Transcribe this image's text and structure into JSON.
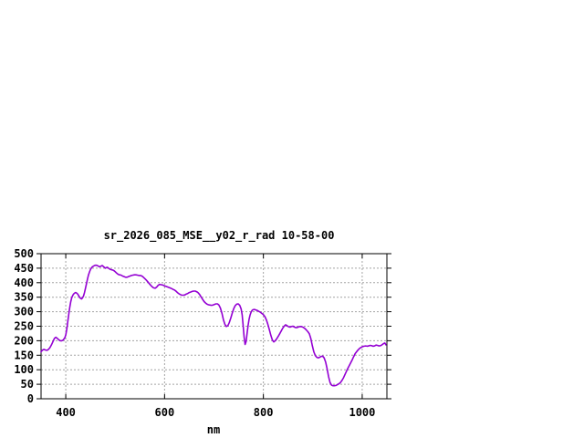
{
  "window": {
    "background": "#ffffff"
  },
  "chart_data": {
    "type": "line",
    "title": "sr_2026_085_MSE__y02_r_rad 10-58-00",
    "xlabel": "nm",
    "ylabel": "",
    "xlim": [
      350,
      1050
    ],
    "ylim": [
      0,
      500
    ],
    "x_ticks": [
      400,
      600,
      800,
      1000
    ],
    "y_ticks": [
      0,
      50,
      100,
      150,
      200,
      250,
      300,
      350,
      400,
      450,
      500
    ],
    "grid": true,
    "legend": "none",
    "line_color": "#9400d3",
    "grid_color": "#a3a3a3",
    "text_color": "#000000",
    "series": [
      {
        "points": [
          [
            350,
            162
          ],
          [
            353,
            168
          ],
          [
            356,
            170
          ],
          [
            359,
            168
          ],
          [
            362,
            167
          ],
          [
            365,
            170
          ],
          [
            368,
            176
          ],
          [
            371,
            186
          ],
          [
            374,
            197
          ],
          [
            377,
            208
          ],
          [
            380,
            212
          ],
          [
            383,
            208
          ],
          [
            386,
            203
          ],
          [
            389,
            200
          ],
          [
            392,
            200
          ],
          [
            395,
            203
          ],
          [
            398,
            210
          ],
          [
            400,
            220
          ],
          [
            402,
            240
          ],
          [
            404,
            264
          ],
          [
            406,
            290
          ],
          [
            408,
            314
          ],
          [
            410,
            334
          ],
          [
            412,
            348
          ],
          [
            414,
            356
          ],
          [
            416,
            361
          ],
          [
            418,
            364
          ],
          [
            420,
            366
          ],
          [
            422,
            364
          ],
          [
            424,
            361
          ],
          [
            426,
            356
          ],
          [
            428,
            350
          ],
          [
            430,
            346
          ],
          [
            432,
            344
          ],
          [
            434,
            348
          ],
          [
            436,
            355
          ],
          [
            438,
            366
          ],
          [
            440,
            381
          ],
          [
            442,
            397
          ],
          [
            444,
            413
          ],
          [
            446,
            427
          ],
          [
            448,
            437
          ],
          [
            450,
            445
          ],
          [
            452,
            451
          ],
          [
            454,
            455
          ],
          [
            456,
            457
          ],
          [
            458,
            459
          ],
          [
            460,
            460
          ],
          [
            462,
            460
          ],
          [
            464,
            459
          ],
          [
            466,
            457
          ],
          [
            468,
            455
          ],
          [
            470,
            456
          ],
          [
            472,
            458
          ],
          [
            474,
            459
          ],
          [
            476,
            456
          ],
          [
            478,
            453
          ],
          [
            480,
            450
          ],
          [
            482,
            452
          ],
          [
            484,
            453
          ],
          [
            486,
            451
          ],
          [
            488,
            448
          ],
          [
            490,
            446
          ],
          [
            492,
            445
          ],
          [
            494,
            444
          ],
          [
            496,
            443
          ],
          [
            498,
            441
          ],
          [
            500,
            438
          ],
          [
            503,
            433
          ],
          [
            506,
            429
          ],
          [
            509,
            427
          ],
          [
            512,
            426
          ],
          [
            515,
            423
          ],
          [
            518,
            421
          ],
          [
            521,
            419
          ],
          [
            524,
            419
          ],
          [
            527,
            421
          ],
          [
            530,
            423
          ],
          [
            533,
            425
          ],
          [
            536,
            426
          ],
          [
            539,
            427
          ],
          [
            542,
            427
          ],
          [
            545,
            426
          ],
          [
            548,
            425
          ],
          [
            551,
            425
          ],
          [
            554,
            423
          ],
          [
            557,
            419
          ],
          [
            560,
            414
          ],
          [
            563,
            409
          ],
          [
            566,
            403
          ],
          [
            569,
            397
          ],
          [
            572,
            391
          ],
          [
            575,
            386
          ],
          [
            578,
            382
          ],
          [
            581,
            381
          ],
          [
            584,
            385
          ],
          [
            587,
            391
          ],
          [
            590,
            394
          ],
          [
            593,
            393
          ],
          [
            596,
            392
          ],
          [
            599,
            390
          ],
          [
            602,
            388
          ],
          [
            605,
            386
          ],
          [
            608,
            384
          ],
          [
            611,
            382
          ],
          [
            614,
            380
          ],
          [
            617,
            377
          ],
          [
            620,
            375
          ],
          [
            623,
            371
          ],
          [
            626,
            366
          ],
          [
            629,
            362
          ],
          [
            632,
            359
          ],
          [
            635,
            357
          ],
          [
            638,
            357
          ],
          [
            641,
            358
          ],
          [
            644,
            361
          ],
          [
            647,
            363
          ],
          [
            650,
            366
          ],
          [
            653,
            368
          ],
          [
            656,
            370
          ],
          [
            659,
            371
          ],
          [
            662,
            371
          ],
          [
            665,
            369
          ],
          [
            668,
            365
          ],
          [
            671,
            359
          ],
          [
            674,
            351
          ],
          [
            677,
            343
          ],
          [
            680,
            335
          ],
          [
            683,
            330
          ],
          [
            686,
            326
          ],
          [
            689,
            324
          ],
          [
            692,
            323
          ],
          [
            695,
            322
          ],
          [
            698,
            323
          ],
          [
            701,
            325
          ],
          [
            704,
            327
          ],
          [
            707,
            327
          ],
          [
            710,
            323
          ],
          [
            713,
            313
          ],
          [
            716,
            295
          ],
          [
            719,
            273
          ],
          [
            722,
            257
          ],
          [
            725,
            249
          ],
          [
            728,
            252
          ],
          [
            731,
            263
          ],
          [
            734,
            278
          ],
          [
            737,
            295
          ],
          [
            740,
            311
          ],
          [
            743,
            321
          ],
          [
            746,
            326
          ],
          [
            749,
            327
          ],
          [
            752,
            322
          ],
          [
            755,
            309
          ],
          [
            757,
            289
          ],
          [
            759,
            254
          ],
          [
            761,
            213
          ],
          [
            763,
            187
          ],
          [
            765,
            197
          ],
          [
            767,
            226
          ],
          [
            769,
            253
          ],
          [
            771,
            273
          ],
          [
            773,
            288
          ],
          [
            775,
            298
          ],
          [
            777,
            304
          ],
          [
            779,
            307
          ],
          [
            782,
            308
          ],
          [
            785,
            306
          ],
          [
            788,
            304
          ],
          [
            791,
            301
          ],
          [
            794,
            298
          ],
          [
            797,
            294
          ],
          [
            800,
            290
          ],
          [
            803,
            283
          ],
          [
            806,
            272
          ],
          [
            809,
            257
          ],
          [
            812,
            239
          ],
          [
            815,
            219
          ],
          [
            818,
            203
          ],
          [
            821,
            196
          ],
          [
            824,
            200
          ],
          [
            827,
            207
          ],
          [
            830,
            215
          ],
          [
            833,
            224
          ],
          [
            836,
            233
          ],
          [
            839,
            243
          ],
          [
            842,
            250
          ],
          [
            845,
            255
          ],
          [
            848,
            252
          ],
          [
            851,
            248
          ],
          [
            854,
            247
          ],
          [
            857,
            249
          ],
          [
            860,
            250
          ],
          [
            863,
            247
          ],
          [
            866,
            245
          ],
          [
            869,
            246
          ],
          [
            872,
            248
          ],
          [
            875,
            249
          ],
          [
            878,
            248
          ],
          [
            881,
            246
          ],
          [
            884,
            242
          ],
          [
            887,
            237
          ],
          [
            890,
            231
          ],
          [
            893,
            224
          ],
          [
            896,
            208
          ],
          [
            899,
            184
          ],
          [
            902,
            162
          ],
          [
            905,
            149
          ],
          [
            908,
            143
          ],
          [
            911,
            141
          ],
          [
            914,
            143
          ],
          [
            917,
            146
          ],
          [
            920,
            147
          ],
          [
            923,
            141
          ],
          [
            926,
            126
          ],
          [
            929,
            103
          ],
          [
            932,
            76
          ],
          [
            935,
            56
          ],
          [
            938,
            47
          ],
          [
            941,
            45
          ],
          [
            944,
            45
          ],
          [
            947,
            46
          ],
          [
            950,
            49
          ],
          [
            953,
            52
          ],
          [
            956,
            56
          ],
          [
            959,
            63
          ],
          [
            962,
            72
          ],
          [
            965,
            83
          ],
          [
            968,
            94
          ],
          [
            971,
            105
          ],
          [
            974,
            115
          ],
          [
            977,
            125
          ],
          [
            980,
            135
          ],
          [
            983,
            146
          ],
          [
            986,
            156
          ],
          [
            989,
            163
          ],
          [
            992,
            169
          ],
          [
            995,
            174
          ],
          [
            998,
            177
          ],
          [
            1001,
            180
          ],
          [
            1004,
            181
          ],
          [
            1007,
            182
          ],
          [
            1010,
            181
          ],
          [
            1013,
            182
          ],
          [
            1016,
            184
          ],
          [
            1019,
            183
          ],
          [
            1022,
            181
          ],
          [
            1025,
            182
          ],
          [
            1028,
            185
          ],
          [
            1031,
            184
          ],
          [
            1034,
            182
          ],
          [
            1037,
            183
          ],
          [
            1040,
            186
          ],
          [
            1043,
            190
          ],
          [
            1046,
            192
          ],
          [
            1048,
            186
          ]
        ]
      }
    ]
  }
}
